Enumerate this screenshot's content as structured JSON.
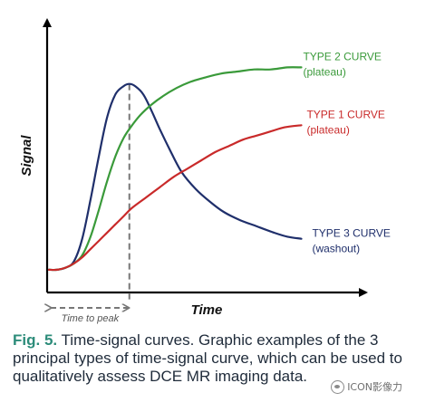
{
  "chart_data": {
    "type": "line",
    "title": "",
    "xlabel": "Time",
    "ylabel": "Signal",
    "x_ticks": [],
    "y_ticks": [],
    "grid": false,
    "legend": "labels at right end of each curve",
    "xlim": [
      0,
      10
    ],
    "ylim": [
      0,
      10
    ],
    "series": [
      {
        "name": "TYPE 3 CURVE",
        "sub": "(washout)",
        "color": "#1f2f6b",
        "x": [
          0,
          0.3,
          0.6,
          0.9,
          1.2,
          1.5,
          1.8,
          2.1,
          2.4,
          2.7,
          2.9,
          3.1,
          3.4,
          3.7,
          4.0,
          4.4,
          4.8,
          5.3,
          5.8,
          6.3,
          6.9,
          7.5,
          8.1,
          8.6,
          9.1
        ],
        "y": [
          0.4,
          0.4,
          0.5,
          0.8,
          1.9,
          3.8,
          5.9,
          7.8,
          8.9,
          9.3,
          9.4,
          9.3,
          8.9,
          8.1,
          7.2,
          6.1,
          5.1,
          4.3,
          3.7,
          3.2,
          2.8,
          2.5,
          2.2,
          2.0,
          1.9
        ]
      },
      {
        "name": "TYPE 2 CURVE",
        "sub": "(plateau)",
        "color": "#3a9a3a",
        "x": [
          0,
          0.3,
          0.6,
          0.9,
          1.2,
          1.5,
          1.8,
          2.1,
          2.4,
          2.7,
          3.0,
          3.3,
          3.7,
          4.1,
          4.6,
          5.1,
          5.6,
          6.2,
          6.8,
          7.4,
          8.0,
          8.6,
          9.1
        ],
        "y": [
          0.4,
          0.4,
          0.5,
          0.7,
          1.1,
          2.0,
          3.3,
          4.7,
          5.9,
          6.8,
          7.4,
          7.9,
          8.4,
          8.8,
          9.2,
          9.5,
          9.7,
          9.9,
          10.0,
          10.1,
          10.1,
          10.2,
          10.2
        ]
      },
      {
        "name": "TYPE 1 CURVE",
        "sub": "(plateau)",
        "color": "#c92a2a",
        "x": [
          0,
          0.3,
          0.6,
          0.9,
          1.2,
          1.5,
          1.8,
          2.1,
          2.4,
          2.7,
          3.0,
          3.5,
          4.0,
          4.5,
          5.0,
          5.5,
          6.0,
          6.5,
          7.0,
          7.5,
          8.0,
          8.5,
          9.1
        ],
        "y": [
          0.4,
          0.4,
          0.5,
          0.7,
          1.0,
          1.4,
          1.8,
          2.2,
          2.6,
          3.0,
          3.4,
          3.9,
          4.4,
          4.9,
          5.3,
          5.7,
          6.1,
          6.4,
          6.7,
          6.9,
          7.1,
          7.3,
          7.4
        ]
      }
    ],
    "peak_x": 2.9,
    "time_to_peak_label": "Time to peak"
  },
  "caption": {
    "fig_label": "Fig. 5.",
    "text": "Time-signal curves. Graphic examples of the 3 principal types of time-signal curve, which can be used to qualitatively assess DCE MR imaging data."
  },
  "watermark": {
    "text": "ICON影像力"
  }
}
